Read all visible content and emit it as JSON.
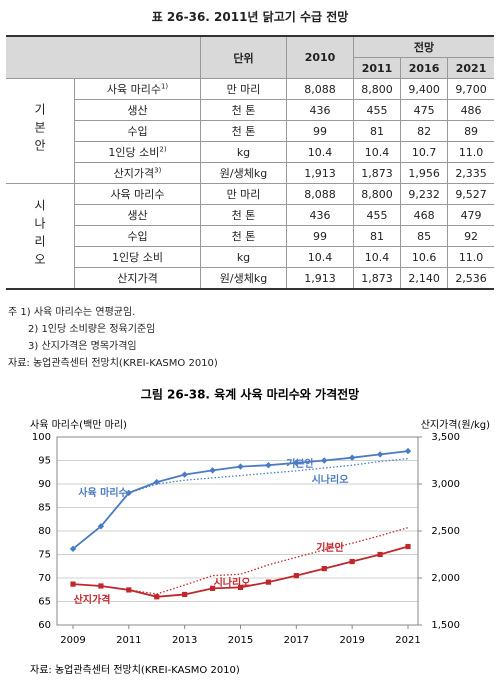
{
  "table": {
    "title": "표 26-36.  2011년 닭고기 수급 전망",
    "header": {
      "unit": "단위",
      "base": "2010",
      "forecast": "전망",
      "years": [
        "2011",
        "2016",
        "2021"
      ]
    },
    "groups": [
      {
        "name": "기본안",
        "rows": [
          {
            "label": "사육 마리수",
            "sup": "1)",
            "unit": "만 마리",
            "values": [
              "8,088",
              "8,800",
              "9,400",
              "9,700"
            ]
          },
          {
            "label": "생산",
            "unit": "천 톤",
            "values": [
              "436",
              "455",
              "475",
              "486"
            ]
          },
          {
            "label": "수입",
            "unit": "천 톤",
            "values": [
              "99",
              "81",
              "82",
              "89"
            ]
          },
          {
            "label": "1인당 소비",
            "sup": "2)",
            "unit": "kg",
            "values": [
              "10.4",
              "10.4",
              "10.7",
              "11.0"
            ]
          },
          {
            "label": "산지가격",
            "sup": "3)",
            "unit": "원/생체kg",
            "values": [
              "1,913",
              "1,873",
              "1,956",
              "2,335"
            ]
          }
        ]
      },
      {
        "name": "시나리오",
        "rows": [
          {
            "label": "사육 마리수",
            "unit": "만 마리",
            "values": [
              "8,088",
              "8,800",
              "9,232",
              "9,527"
            ]
          },
          {
            "label": "생산",
            "unit": "천 톤",
            "values": [
              "436",
              "455",
              "468",
              "479"
            ]
          },
          {
            "label": "수입",
            "unit": "천 톤",
            "values": [
              "99",
              "81",
              "85",
              "92"
            ]
          },
          {
            "label": "1인당 소비",
            "unit": "kg",
            "values": [
              "10.4",
              "10.4",
              "10.6",
              "11.0"
            ]
          },
          {
            "label": "산지가격",
            "unit": "원/생체kg",
            "values": [
              "1,913",
              "1,873",
              "2,140",
              "2,536"
            ]
          }
        ]
      }
    ]
  },
  "notes": [
    "주 1) 사육 마리수는 연평균임.",
    "2) 1인당 소비량은 정육기준임",
    "3) 산지가격은 명목가격임"
  ],
  "table_source": "자료: 농업관측센터 전망치(KREI-KASMO 2010)",
  "chart_data": {
    "type": "line",
    "title": "그림 26-38.  육계 사육 마리수와 가격전망",
    "y_label": "사육 마리수(백만 마리)",
    "y2_label": "산지가격(원/kg)",
    "annotations": [
      "사육 마리수",
      "산지가격"
    ],
    "x": [
      2009,
      2010,
      2011,
      2012,
      2013,
      2014,
      2015,
      2016,
      2017,
      2018,
      2019,
      2020,
      2021
    ],
    "xlim": [
      2009,
      2021
    ],
    "xticks": [
      2009,
      2011,
      2013,
      2015,
      2017,
      2019,
      2021
    ],
    "ylim": [
      60,
      100
    ],
    "yticks": [
      60,
      65,
      70,
      75,
      80,
      85,
      90,
      95,
      100
    ],
    "y2lim": [
      1500,
      3500
    ],
    "y2ticks": [
      {
        "value": 1500,
        "label": "1,500"
      },
      {
        "value": 2000,
        "label": "2,000"
      },
      {
        "value": 2500,
        "label": "2,500"
      },
      {
        "value": 3000,
        "label": "3,000"
      },
      {
        "value": 3500,
        "label": "3,500"
      }
    ],
    "grid": true,
    "series": [
      {
        "name": "기본안",
        "color": "#4a7cc4",
        "style": "solid",
        "marker": "diamond",
        "values": [
          76.2,
          81,
          88.1,
          90.4,
          92,
          92.9,
          93.7,
          94,
          94.5,
          95,
          95.6,
          96.3,
          97
        ]
      },
      {
        "name": "시나리오",
        "color": "#4a7cc4",
        "style": "dotted",
        "values": [
          null,
          null,
          88.1,
          90,
          90.8,
          91.3,
          91.8,
          92.3,
          92.8,
          93.4,
          94,
          94.8,
          95.4
        ]
      },
      {
        "name": "기본안",
        "color": "#c0272d",
        "style": "solid",
        "marker": "square",
        "axis": "y2",
        "values": [
          1935,
          1915,
          1873,
          1800,
          1825,
          1890,
          1900,
          1956,
          2025,
          2100,
          2175,
          2250,
          2335
        ]
      },
      {
        "name": "시나리오",
        "color": "#c0272d",
        "style": "dotted",
        "axis": "y2",
        "values": [
          null,
          null,
          1873,
          1830,
          1925,
          2025,
          2040,
          2140,
          2220,
          2300,
          2370,
          2450,
          2536
        ]
      }
    ]
  },
  "chart_source": "자료: 농업관측센터 전망치(KREI-KASMO 2010)"
}
